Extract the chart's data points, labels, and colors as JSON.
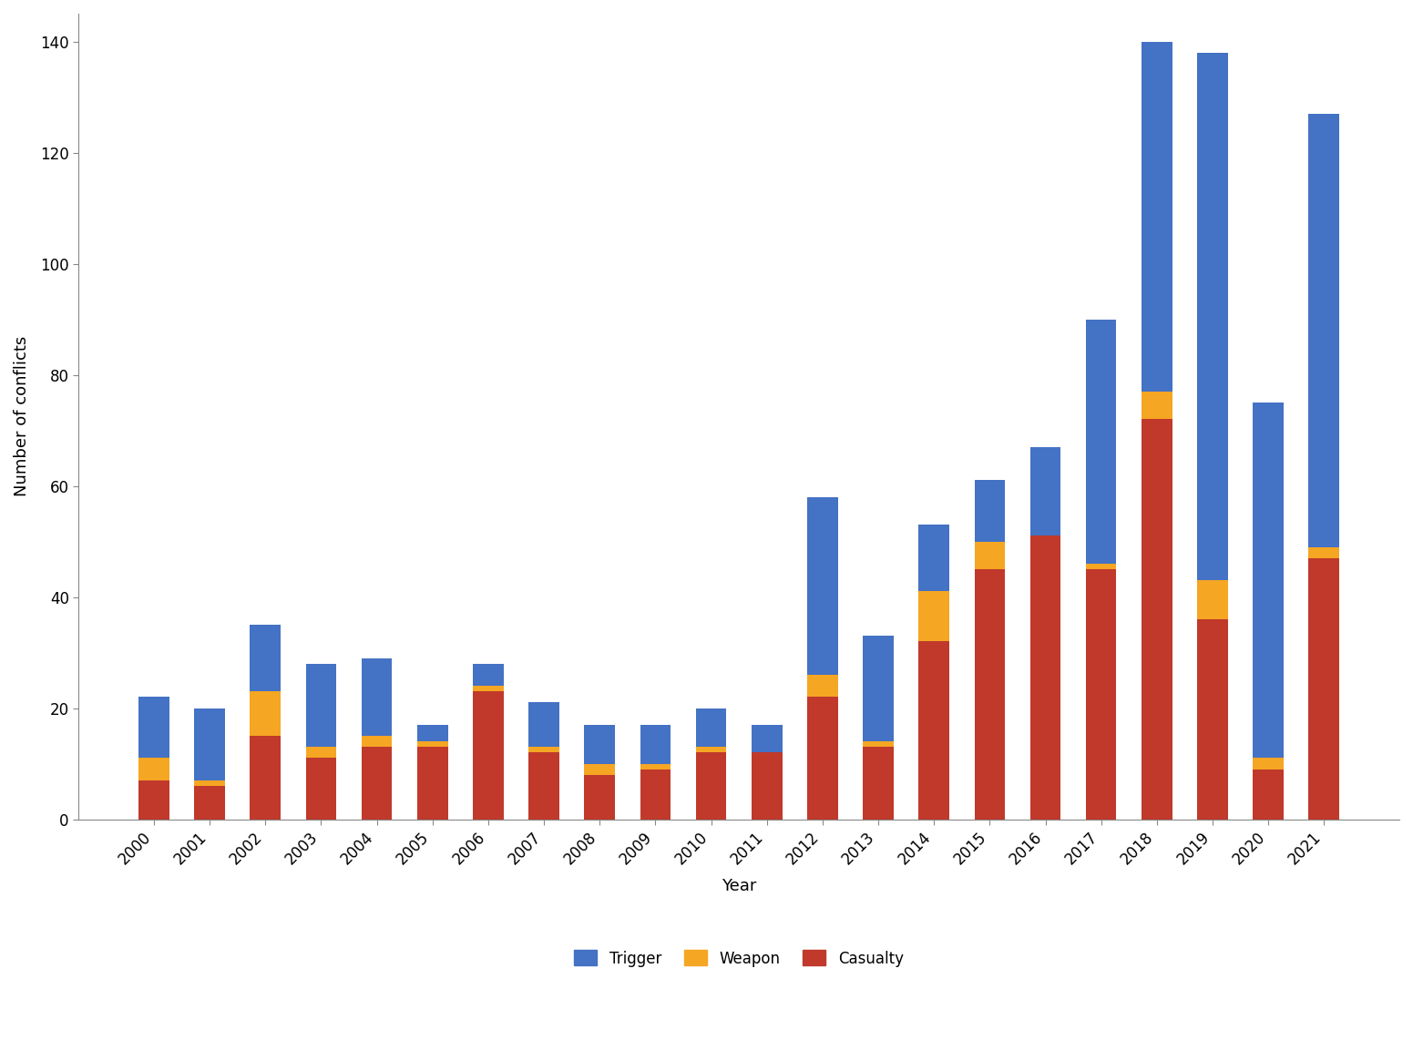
{
  "years": [
    2000,
    2001,
    2002,
    2003,
    2004,
    2005,
    2006,
    2007,
    2008,
    2009,
    2010,
    2011,
    2012,
    2013,
    2014,
    2015,
    2016,
    2017,
    2018,
    2019,
    2020,
    2021
  ],
  "casualty": [
    7,
    6,
    15,
    11,
    13,
    13,
    23,
    12,
    8,
    9,
    12,
    12,
    22,
    13,
    32,
    45,
    51,
    45,
    72,
    36,
    9,
    47
  ],
  "weapon": [
    4,
    1,
    8,
    2,
    2,
    1,
    1,
    1,
    2,
    1,
    1,
    0,
    4,
    1,
    9,
    5,
    0,
    1,
    5,
    7,
    2,
    2
  ],
  "trigger": [
    11,
    13,
    12,
    15,
    14,
    3,
    4,
    8,
    7,
    7,
    7,
    5,
    32,
    19,
    12,
    11,
    16,
    44,
    63,
    95,
    64,
    78
  ],
  "trigger_color": "#4472c4",
  "weapon_color": "#f5a623",
  "casualty_color": "#c0392b",
  "xlabel": "Year",
  "ylabel": "Number of conflicts",
  "ylim": [
    0,
    145
  ],
  "yticks": [
    0,
    20,
    40,
    60,
    80,
    100,
    120,
    140
  ],
  "background_color": "#ffffff"
}
